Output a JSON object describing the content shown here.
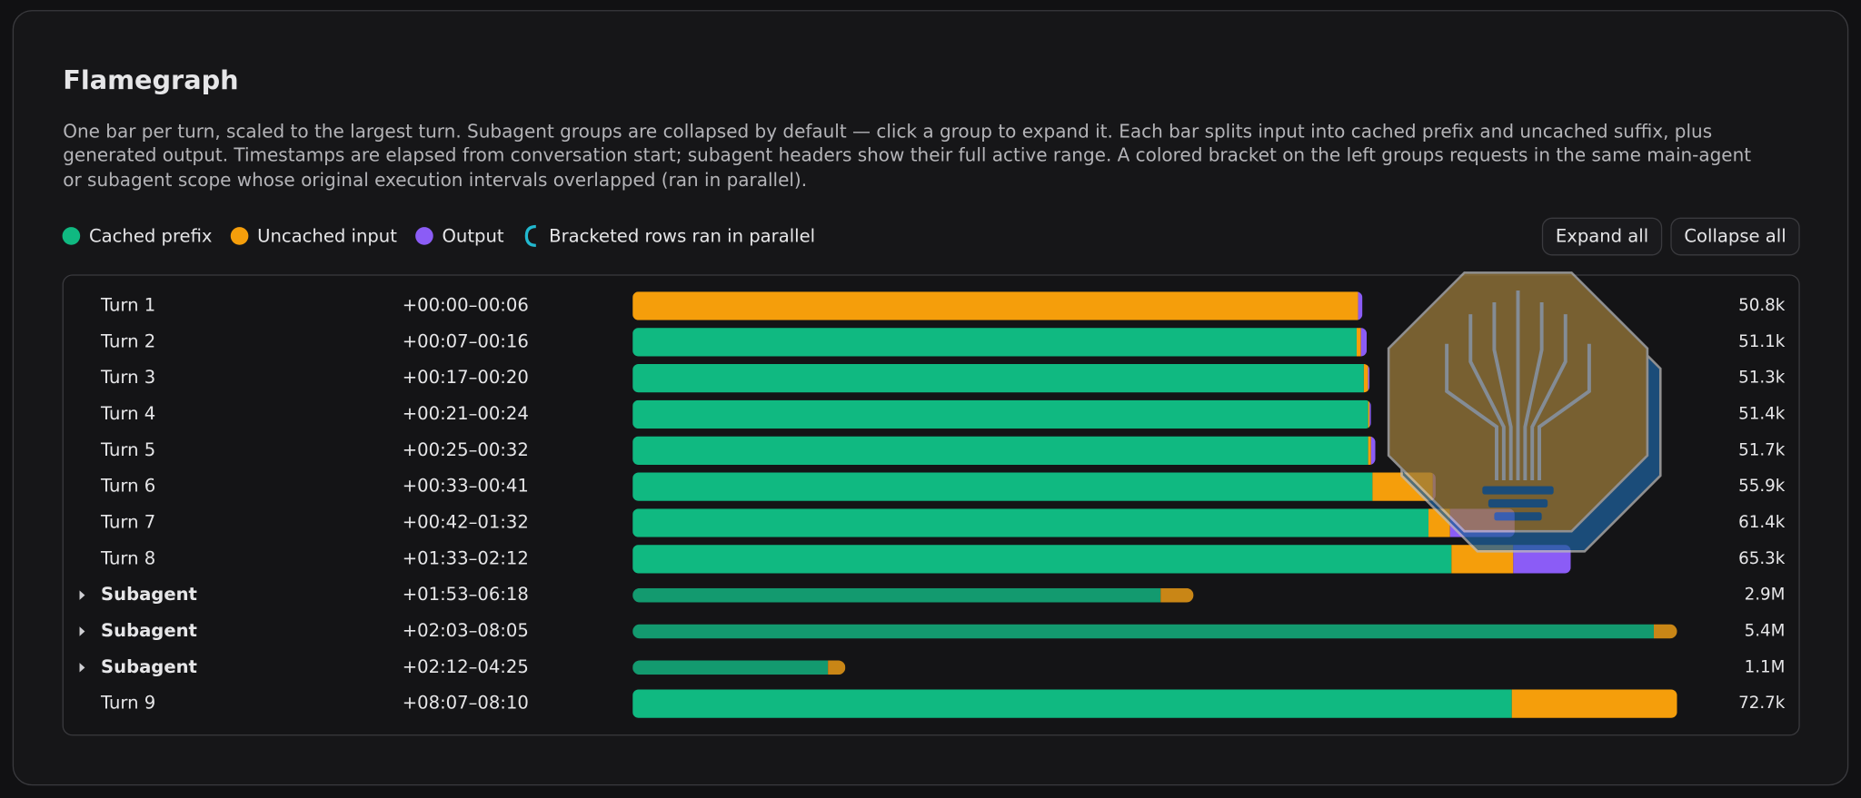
{
  "header": {
    "title": "Flamegraph",
    "description": "One bar per turn, scaled to the largest turn. Subagent groups are collapsed by default — click a group to expand it. Each bar splits input into cached prefix and uncached suffix, plus generated output. Timestamps are elapsed from conversation start; subagent headers show their full active range. A colored bracket on the left groups requests in the same main-agent or subagent scope whose original execution intervals overlapped (ran in parallel)."
  },
  "legend": [
    {
      "label": "Cached prefix",
      "color": "#10b981",
      "marker": "dot"
    },
    {
      "label": "Uncached input",
      "color": "#f59e0b",
      "marker": "dot"
    },
    {
      "label": "Output",
      "color": "#8b5cf6",
      "marker": "dot"
    },
    {
      "label": "Bracketed rows ran in parallel",
      "color": "#22b8cf",
      "marker": "bracket"
    }
  ],
  "buttons": [
    "Expand all",
    "Collapse all"
  ],
  "rows": [
    {
      "label": "Turn 1",
      "time": "+00:00–00:06",
      "total_label": "50.8k",
      "expandable": false,
      "segments": [
        0,
        50.5,
        0.3
      ]
    },
    {
      "label": "Turn 2",
      "time": "+00:07–00:16",
      "total_label": "51.1k",
      "expandable": false,
      "segments": [
        50.4,
        0.3,
        0.4
      ]
    },
    {
      "label": "Turn 3",
      "time": "+00:17–00:20",
      "total_label": "51.3k",
      "expandable": false,
      "segments": [
        50.9,
        0.3,
        0.1
      ]
    },
    {
      "label": "Turn 4",
      "time": "+00:21–00:24",
      "total_label": "51.4k",
      "expandable": false,
      "segments": [
        51.2,
        0.1,
        0.1
      ]
    },
    {
      "label": "Turn 5",
      "time": "+00:25–00:32",
      "total_label": "51.7k",
      "expandable": false,
      "segments": [
        51.2,
        0.2,
        0.3
      ]
    },
    {
      "label": "Turn 6",
      "time": "+00:33–00:41",
      "total_label": "55.9k",
      "expandable": false,
      "segments": [
        51.5,
        4.2,
        0.2
      ]
    },
    {
      "label": "Turn 7",
      "time": "+00:42–01:32",
      "total_label": "61.4k",
      "expandable": false,
      "segments": [
        55.4,
        1.5,
        4.5
      ]
    },
    {
      "label": "Turn 8",
      "time": "+01:33–02:12",
      "total_label": "65.3k",
      "expandable": false,
      "segments": [
        57.0,
        4.3,
        4.0
      ]
    },
    {
      "label": "Subagent",
      "time": "+01:53–06:18",
      "total_label": "2.9M",
      "expandable": true,
      "segments": [
        2730,
        170,
        0
      ]
    },
    {
      "label": "Subagent",
      "time": "+02:03–08:05",
      "total_label": "5.4M",
      "expandable": true,
      "segments": [
        5280,
        120,
        0
      ]
    },
    {
      "label": "Subagent",
      "time": "+02:12–04:25",
      "total_label": "1.1M",
      "expandable": true,
      "segments": [
        1010,
        90,
        0
      ]
    },
    {
      "label": "Turn 9",
      "time": "+08:07–08:10",
      "total_label": "72.7k",
      "expandable": false,
      "segments": [
        61.2,
        11.5,
        0
      ]
    }
  ]
}
